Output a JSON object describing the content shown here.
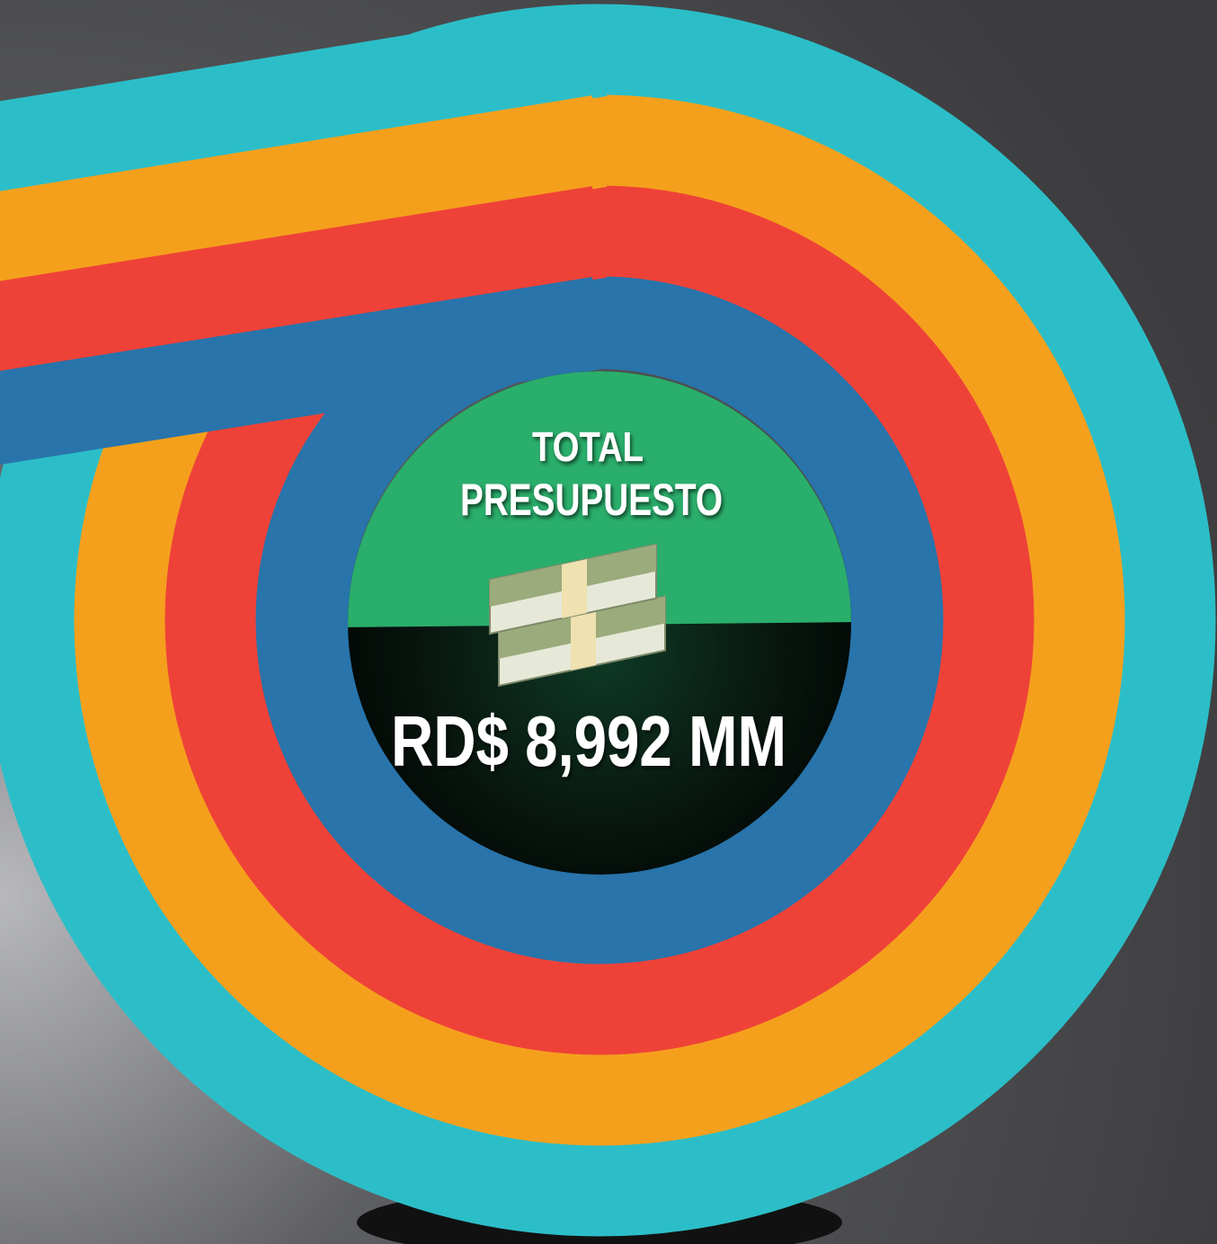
{
  "title_lines": [
    "TOTAL",
    "PRESUPUESTO"
  ],
  "amount": "RD$ 8,992 MM"
}
